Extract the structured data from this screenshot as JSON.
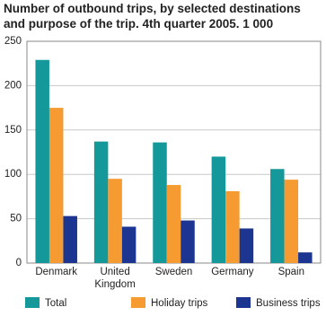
{
  "chart_data": {
    "type": "bar",
    "title": "Number of outbound trips, by selected destinations and purpose of the trip. 4th quarter 2005. 1 000",
    "categories": [
      "Denmark",
      "United Kingdom",
      "Sweden",
      "Germany",
      "Spain"
    ],
    "series": [
      {
        "name": "Total",
        "color": "#14989a",
        "values": [
          229,
          137,
          136,
          120,
          106
        ]
      },
      {
        "name": "Holiday trips",
        "color": "#f59b31",
        "values": [
          175,
          95,
          88,
          81,
          94
        ]
      },
      {
        "name": "Business trips",
        "color": "#1c3590",
        "values": [
          53,
          41,
          48,
          39,
          12
        ]
      }
    ],
    "ylim": [
      0,
      250
    ],
    "yticks": [
      0,
      50,
      100,
      150,
      200,
      250
    ],
    "grid": true
  }
}
